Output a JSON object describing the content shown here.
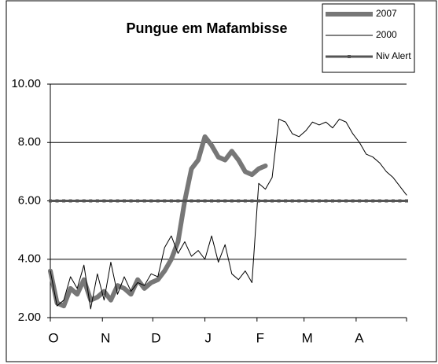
{
  "chart_data": {
    "type": "line",
    "title": "Pungue em Mafambisse",
    "x": [
      0,
      4,
      8,
      12,
      16,
      20,
      24,
      28,
      32,
      36,
      40,
      44,
      48,
      52,
      56,
      60,
      64,
      68,
      72,
      76,
      80,
      84,
      88,
      92,
      96,
      100,
      104,
      108,
      112,
      116,
      120,
      124,
      128,
      132,
      136,
      140,
      144,
      148,
      152,
      156,
      160,
      164,
      168,
      172,
      176,
      180,
      184,
      188,
      192,
      196,
      200,
      204,
      208,
      212
    ],
    "xlim": [
      0,
      212
    ],
    "xticks": [
      {
        "value": 0,
        "label": "O"
      },
      {
        "value": 31,
        "label": "N"
      },
      {
        "value": 61,
        "label": "D"
      },
      {
        "value": 92,
        "label": "J"
      },
      {
        "value": 123,
        "label": "F"
      },
      {
        "value": 151,
        "label": "M"
      },
      {
        "value": 182,
        "label": "A"
      }
    ],
    "ylim": [
      2,
      10
    ],
    "yticks": [
      {
        "value": 2,
        "label": "2.00"
      },
      {
        "value": 4,
        "label": "4.00"
      },
      {
        "value": 6,
        "label": "6.00"
      },
      {
        "value": 8,
        "label": "8.00"
      },
      {
        "value": 10,
        "label": "10.00"
      }
    ],
    "grid": true,
    "legend": "top-right",
    "series": [
      {
        "name": "2007",
        "color": "#777777",
        "values": [
          3.6,
          2.5,
          2.4,
          3.0,
          2.8,
          3.3,
          2.6,
          2.7,
          2.9,
          2.6,
          3.1,
          3.0,
          2.8,
          3.3,
          3.0,
          3.2,
          3.3,
          3.6,
          4.0,
          4.6,
          6.0,
          7.1,
          7.4,
          8.2,
          7.9,
          7.5,
          7.4,
          7.7,
          7.4,
          7.0,
          6.9,
          7.1,
          7.2,
          null,
          null,
          null,
          null,
          null,
          null,
          null,
          null,
          null,
          null,
          null,
          null,
          null,
          null,
          null,
          null,
          null,
          null,
          null,
          null,
          null
        ]
      },
      {
        "name": "2000",
        "color": "#000000",
        "values": [
          3.6,
          2.4,
          2.6,
          3.4,
          3.0,
          3.8,
          2.3,
          3.5,
          2.6,
          3.9,
          2.8,
          3.4,
          2.9,
          3.2,
          3.1,
          3.5,
          3.4,
          4.4,
          4.8,
          4.2,
          4.6,
          4.1,
          4.3,
          4.0,
          4.8,
          3.9,
          4.5,
          3.5,
          3.3,
          3.6,
          3.2,
          6.6,
          6.4,
          6.8,
          8.8,
          8.7,
          8.3,
          8.2,
          8.4,
          8.7,
          8.6,
          8.7,
          8.5,
          8.8,
          8.7,
          8.3,
          8.0,
          7.6,
          7.5,
          7.3,
          7.0,
          6.8,
          6.5,
          6.2
        ]
      },
      {
        "name": "Niv Alert",
        "color": "#555555",
        "values": [
          6,
          6,
          6,
          6,
          6,
          6,
          6,
          6,
          6,
          6,
          6,
          6,
          6,
          6,
          6,
          6,
          6,
          6,
          6,
          6,
          6,
          6,
          6,
          6,
          6,
          6,
          6,
          6,
          6,
          6,
          6,
          6,
          6,
          6,
          6,
          6,
          6,
          6,
          6,
          6,
          6,
          6,
          6,
          6,
          6,
          6,
          6,
          6,
          6,
          6,
          6,
          6,
          6,
          6
        ]
      }
    ]
  }
}
